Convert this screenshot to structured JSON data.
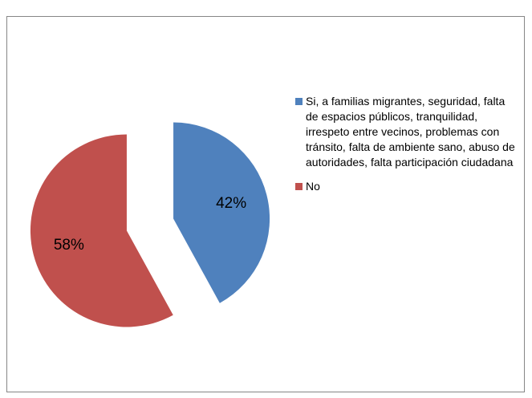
{
  "chart_data": {
    "type": "pie",
    "categories": [
      "Si, a familias migrantes, seguridad, falta de espacios públicos, tranquilidad, irrespeto entre vecinos, problemas con tránsito, falta de ambiente sano, abuso de autoridades, falta participación ciudadana",
      "No"
    ],
    "values": [
      42,
      58
    ],
    "value_labels": [
      "42%",
      "58%"
    ],
    "colors": [
      "#4f81bd",
      "#c0504d"
    ],
    "legend": "right"
  }
}
